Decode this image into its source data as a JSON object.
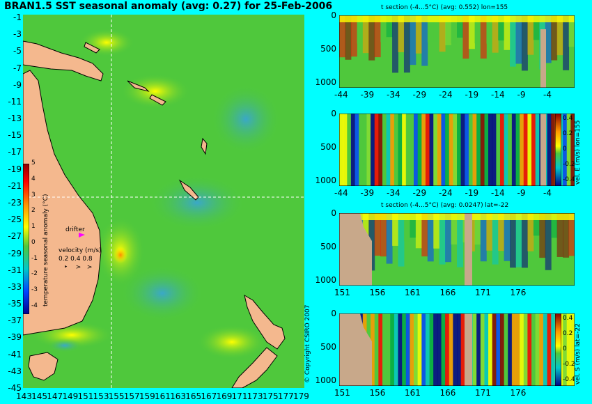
{
  "main_map": {
    "title": "BRAN1.5 SST seasonal anomaly (avg: 0.27) for 25-Feb-2006",
    "lat_ticks": [
      "-1",
      "-3",
      "-5",
      "-7",
      "-9",
      "-11",
      "-13",
      "-15",
      "-17",
      "-19",
      "-21",
      "-23",
      "-25",
      "-27",
      "-29",
      "-31",
      "-33",
      "-35",
      "-37",
      "-39",
      "-41",
      "-43",
      "-45"
    ],
    "lon_ticks": [
      "143",
      "145",
      "147",
      "149",
      "151",
      "153",
      "155",
      "157",
      "159",
      "161",
      "163",
      "165",
      "167",
      "169",
      "171",
      "173",
      "175",
      "177",
      "179"
    ],
    "colorbar": {
      "label": "temperature seasonal anomaly (°C)",
      "ticks": [
        "5",
        "4",
        "3",
        "2",
        "1",
        "0",
        "-1",
        "-2",
        "-3",
        "-4"
      ]
    },
    "drifter_label": "drifter",
    "velocity_legend": {
      "label": "velocity (m/s)",
      "values": "0.2 0.4 0.8"
    },
    "copyright": "© Copyright CSIRO 2007"
  },
  "panels": [
    {
      "title": "t section (-4...5°C) (avg: 0.552) lon=155",
      "x_ticks": [
        "-44",
        "-39",
        "-34",
        "-29",
        "-24",
        "-19",
        "-14",
        "-9",
        "-4"
      ],
      "y_ticks": [
        "0",
        "500",
        "1000"
      ],
      "colorbar_label": ""
    },
    {
      "title": "",
      "x_ticks": [
        "-44",
        "-39",
        "-34",
        "-29",
        "-24",
        "-19",
        "-14",
        "-9",
        "-4"
      ],
      "y_ticks": [
        "0",
        "500",
        "1000"
      ],
      "colorbar_label": "vel. E (m/s) lon=155",
      "colorbar_ticks": [
        "0.4",
        "0.2",
        "0",
        "-0.2",
        "-0.4"
      ]
    },
    {
      "title": "t section (-4...5°C) (avg: 0.0247) lat=-22",
      "x_ticks": [
        "151",
        "156",
        "161",
        "166",
        "171",
        "176"
      ],
      "y_ticks": [
        "0",
        "500",
        "1000"
      ],
      "colorbar_label": ""
    },
    {
      "title": "",
      "x_ticks": [
        "151",
        "156",
        "161",
        "166",
        "171",
        "176"
      ],
      "y_ticks": [
        "0",
        "500",
        "1000"
      ],
      "colorbar_label": "vel. S (m/s) lat=-22",
      "colorbar_ticks": [
        "0.4",
        "0.2",
        "0",
        "-0.2",
        "-0.4"
      ]
    }
  ],
  "colors": {
    "background": "#00ffff",
    "ocean": "#4fc83c",
    "land": "#f4b88e",
    "section_land": "#c8a88a",
    "drifter": "#ff00ff",
    "crosshair": "#ffffff"
  }
}
